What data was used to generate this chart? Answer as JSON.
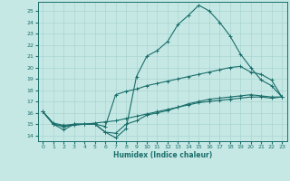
{
  "xlabel": "Humidex (Indice chaleur)",
  "bg_color": "#c5e8e5",
  "grid_color": "#aad4d0",
  "line_color": "#1a6e6a",
  "xlim": [
    -0.5,
    23.5
  ],
  "ylim": [
    13.5,
    25.8
  ],
  "xticks": [
    0,
    1,
    2,
    3,
    4,
    5,
    6,
    7,
    8,
    9,
    10,
    11,
    12,
    13,
    14,
    15,
    16,
    17,
    18,
    19,
    20,
    21,
    22,
    23
  ],
  "yticks": [
    14,
    15,
    16,
    17,
    18,
    19,
    20,
    21,
    22,
    23,
    24,
    25
  ],
  "line1_x": [
    0,
    1,
    2,
    3,
    4,
    5,
    6,
    7,
    8,
    9,
    10,
    11,
    12,
    13,
    14,
    15,
    16,
    17,
    18,
    19,
    20,
    21,
    22,
    23
  ],
  "line1_y": [
    16.1,
    15.0,
    14.5,
    15.0,
    15.0,
    15.0,
    14.3,
    13.8,
    14.6,
    19.2,
    21.0,
    21.5,
    22.3,
    23.8,
    24.6,
    25.5,
    25.0,
    24.0,
    22.8,
    21.2,
    20.0,
    18.9,
    18.4,
    17.4
  ],
  "line2_x": [
    0,
    1,
    2,
    3,
    4,
    5,
    6,
    7,
    8,
    9,
    10,
    11,
    12,
    13,
    14,
    15,
    16,
    17,
    18,
    19,
    20,
    21,
    22,
    23
  ],
  "line2_y": [
    16.1,
    15.0,
    14.8,
    15.0,
    15.0,
    15.0,
    14.8,
    17.6,
    17.9,
    18.1,
    18.4,
    18.6,
    18.8,
    19.0,
    19.2,
    19.4,
    19.6,
    19.8,
    20.0,
    20.1,
    19.6,
    19.4,
    18.9,
    17.4
  ],
  "line3_x": [
    0,
    1,
    2,
    3,
    4,
    5,
    6,
    7,
    8,
    9,
    10,
    11,
    12,
    13,
    14,
    15,
    16,
    17,
    18,
    19,
    20,
    21,
    22,
    23
  ],
  "line3_y": [
    16.1,
    15.1,
    14.9,
    15.0,
    15.0,
    15.1,
    15.2,
    15.3,
    15.5,
    15.7,
    15.9,
    16.1,
    16.3,
    16.5,
    16.7,
    16.9,
    17.0,
    17.1,
    17.2,
    17.3,
    17.4,
    17.4,
    17.3,
    17.4
  ],
  "line4_x": [
    0,
    1,
    2,
    3,
    4,
    5,
    6,
    7,
    8,
    9,
    10,
    11,
    12,
    13,
    14,
    15,
    16,
    17,
    18,
    19,
    20,
    21,
    22,
    23
  ],
  "line4_y": [
    16.1,
    15.0,
    14.8,
    14.9,
    15.0,
    15.0,
    14.3,
    14.2,
    15.0,
    15.3,
    15.8,
    16.0,
    16.2,
    16.5,
    16.8,
    17.0,
    17.2,
    17.3,
    17.4,
    17.5,
    17.6,
    17.5,
    17.4,
    17.4
  ]
}
